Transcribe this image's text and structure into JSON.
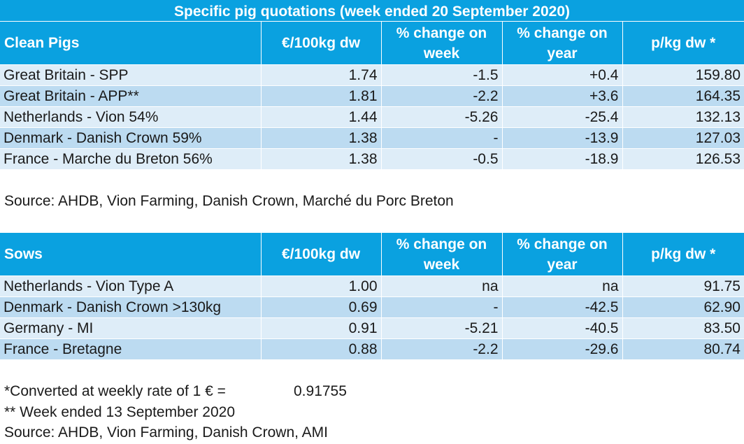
{
  "title": "Specific pig quotations (week ended 20 September 2020)",
  "table1": {
    "headers": [
      "Clean Pigs",
      "€/100kg dw",
      "% change on week",
      "% change on year",
      "p/kg dw *"
    ],
    "rows": [
      [
        "Great Britain - SPP",
        "1.74",
        "-1.5",
        "+0.4",
        "159.80"
      ],
      [
        "Great Britain - APP**",
        "1.81",
        "-2.2",
        "+3.6",
        "164.35"
      ],
      [
        "Netherlands - Vion 54%",
        "1.44",
        "-5.26",
        "-25.4",
        "132.13"
      ],
      [
        "Denmark - Danish Crown 59%",
        "1.38",
        "-",
        "-13.9",
        "127.03"
      ],
      [
        "France - Marche du Breton 56%",
        "1.38",
        "-0.5",
        "-18.9",
        "126.53"
      ]
    ]
  },
  "source1": "Source: AHDB, Vion Farming, Danish Crown, Marché du Porc Breton",
  "table2": {
    "headers": [
      "Sows",
      "€/100kg dw",
      "% change on week",
      "% change on year",
      "p/kg dw *"
    ],
    "rows": [
      [
        "Netherlands - Vion Type A",
        "1.00",
        "na",
        "na",
        "91.75"
      ],
      [
        "Denmark - Danish Crown >130kg",
        "0.69",
        "-",
        "-42.5",
        "62.90"
      ],
      [
        "Germany - MI",
        "0.91",
        "-5.21",
        "-40.5",
        "83.50"
      ],
      [
        "France - Bretagne",
        "0.88",
        "-2.2",
        "-29.6",
        "80.74"
      ]
    ]
  },
  "notes": {
    "rate_label": "*Converted at weekly rate of 1 € =",
    "rate_value": "0.91755",
    "week_note": "** Week ended 13 September 2020",
    "source2": "Source: AHDB, Vion Farming, Danish Crown, AMI"
  }
}
